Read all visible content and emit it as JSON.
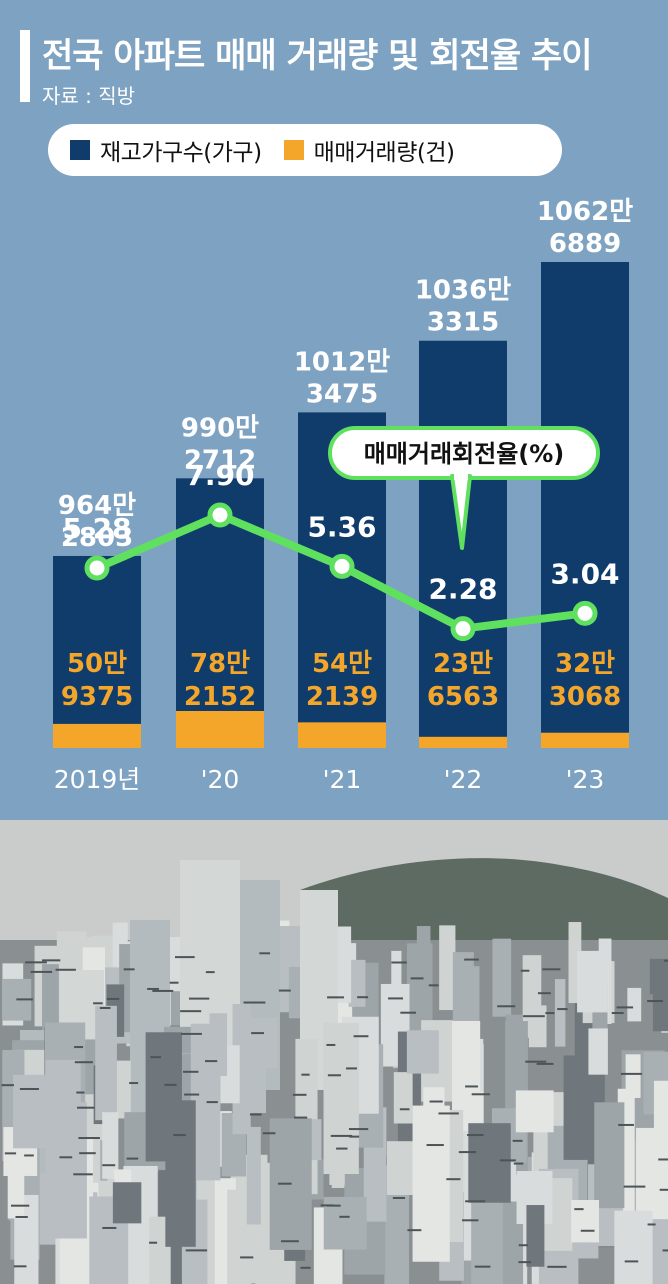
{
  "title": "전국 아파트 매매 거래량 및 회전율 추이",
  "source": "자료 : 직방",
  "legend": {
    "stock_label": "재고가구수(가구)",
    "sales_label": "매매거래량(건)"
  },
  "callout": "매매거래회전율(%)",
  "colors": {
    "background": "#7ea2c1",
    "stock_bar": "#0f3c6b",
    "sales_bar": "#f4a62a",
    "rate_line": "#5fe05f"
  },
  "chart_data": {
    "type": "bar",
    "categories": [
      "2019년",
      "'20",
      "'21",
      "'22",
      "'23"
    ],
    "series": [
      {
        "name": "재고가구수(가구)",
        "values": [
          9642803,
          9902712,
          10123475,
          10363315,
          10626889
        ],
        "labels": [
          [
            "964만",
            "2803"
          ],
          [
            "990만",
            "2712"
          ],
          [
            "1012만",
            "3475"
          ],
          [
            "1036만",
            "3315"
          ],
          [
            "1062만",
            "6889"
          ]
        ]
      },
      {
        "name": "매매거래량(건)",
        "values": [
          509375,
          782152,
          542139,
          236563,
          323068
        ],
        "labels": [
          [
            "50만",
            "9375"
          ],
          [
            "78만",
            "2152"
          ],
          [
            "54만",
            "2139"
          ],
          [
            "23만",
            "6563"
          ],
          [
            "32만",
            "3068"
          ]
        ]
      },
      {
        "name": "매매거래회전율(%)",
        "type": "line",
        "values": [
          5.28,
          7.9,
          5.36,
          2.28,
          3.04
        ],
        "labels": [
          "5.28",
          "7.90",
          "5.36",
          "2.28",
          "3.04"
        ]
      }
    ]
  },
  "photo": {
    "icon": "city-apartments-photo"
  }
}
